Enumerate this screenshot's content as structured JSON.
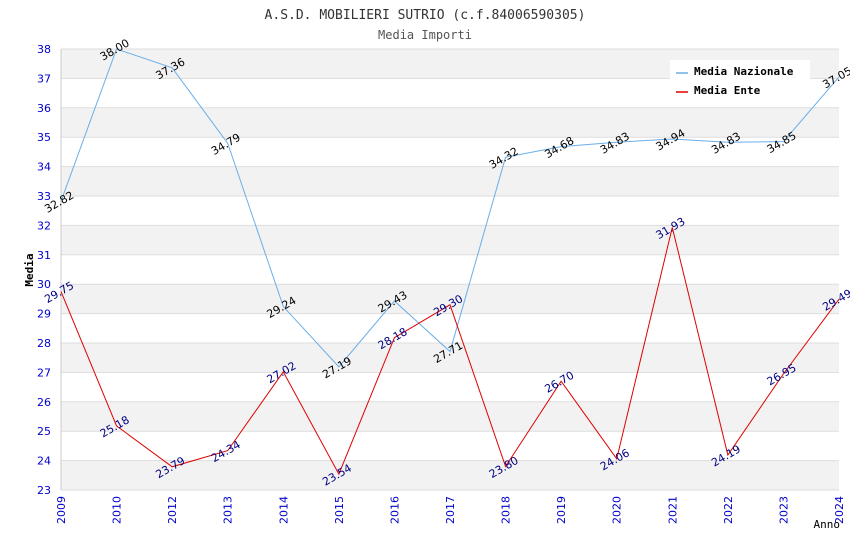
{
  "chart_data": {
    "type": "line",
    "title": "A.S.D. MOBILIERI SUTRIO (c.f.84006590305)",
    "subtitle": "Media Importi",
    "xlabel": "Anno",
    "ylabel": "Media",
    "ylim": [
      23,
      38
    ],
    "yticks": [
      "23",
      "24",
      "25",
      "26",
      "27",
      "28",
      "29",
      "30",
      "31",
      "32",
      "33",
      "34",
      "35",
      "36",
      "37",
      "38"
    ],
    "categories": [
      "2009",
      "2010",
      "2012",
      "2013",
      "2014",
      "2015",
      "2016",
      "2017",
      "2018",
      "2019",
      "2020",
      "2021",
      "2022",
      "2023",
      "2024"
    ],
    "series": [
      {
        "name": "Media Nazionale",
        "color": "#6aaee8",
        "values": [
          32.82,
          38.0,
          37.36,
          34.79,
          29.24,
          27.19,
          29.43,
          27.71,
          34.32,
          34.68,
          34.83,
          34.94,
          34.83,
          34.85,
          37.05
        ],
        "labels": [
          "32.82",
          "38.00",
          "37.36",
          "34.79",
          "29.24",
          "27.19",
          "29.43",
          "27.71",
          "34.32",
          "34.68",
          "34.83",
          "34.94",
          "34.83",
          "34.85",
          "37.05"
        ]
      },
      {
        "name": "Media Ente",
        "color": "#e00000",
        "values": [
          29.75,
          25.18,
          23.79,
          24.34,
          27.02,
          23.54,
          28.18,
          29.3,
          23.8,
          26.7,
          24.06,
          31.93,
          24.19,
          26.95,
          29.49
        ],
        "labels": [
          "29.75",
          "25.18",
          "23.79",
          "24.34",
          "27.02",
          "23.54",
          "28.18",
          "29.30",
          "23.80",
          "26.70",
          "24.06",
          "31.93",
          "24.19",
          "26.95",
          "29.49"
        ]
      }
    ],
    "grid": true,
    "legend_position": "top-right"
  }
}
